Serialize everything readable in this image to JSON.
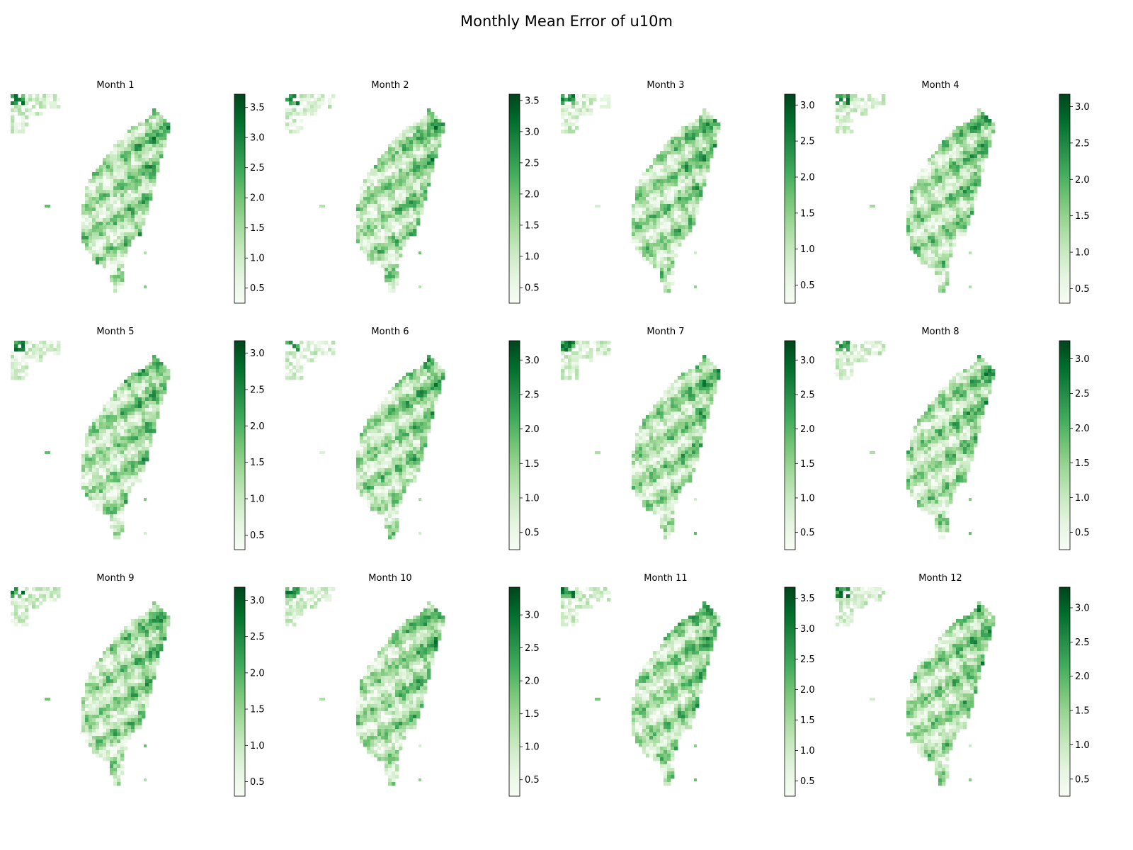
{
  "figure": {
    "title": "Monthly Mean Error of u10m"
  },
  "chart_data": {
    "type": "heatmap",
    "title": "Monthly Mean Error of u10m",
    "colormap": "Greens",
    "colormap_stops": [
      "#f7fcf5",
      "#e5f5e0",
      "#c7e9c0",
      "#a1d99b",
      "#74c476",
      "#41ab5d",
      "#238b45",
      "#006d2c",
      "#00441b"
    ],
    "panels": [
      {
        "title": "Month 1",
        "vmin": 0.25,
        "vmax": 3.72,
        "ticks": [
          "0.5",
          "1.0",
          "1.5",
          "2.0",
          "2.5",
          "3.0",
          "3.5"
        ]
      },
      {
        "title": "Month 2",
        "vmin": 0.25,
        "vmax": 3.6,
        "ticks": [
          "0.5",
          "1.0",
          "1.5",
          "2.0",
          "2.5",
          "3.0",
          "3.5"
        ]
      },
      {
        "title": "Month 3",
        "vmin": 0.25,
        "vmax": 3.15,
        "ticks": [
          "0.5",
          "1.0",
          "1.5",
          "2.0",
          "2.5",
          "3.0"
        ]
      },
      {
        "title": "Month 4",
        "vmin": 0.3,
        "vmax": 3.17,
        "ticks": [
          "0.5",
          "1.0",
          "1.5",
          "2.0",
          "2.5",
          "3.0"
        ]
      },
      {
        "title": "Month 5",
        "vmin": 0.3,
        "vmax": 3.17,
        "ticks": [
          "0.5",
          "1.0",
          "1.5",
          "2.0",
          "2.5",
          "3.0"
        ]
      },
      {
        "title": "Month 6",
        "vmin": 0.25,
        "vmax": 3.28,
        "ticks": [
          "0.5",
          "1.0",
          "1.5",
          "2.0",
          "2.5",
          "3.0"
        ]
      },
      {
        "title": "Month 7",
        "vmin": 0.25,
        "vmax": 3.28,
        "ticks": [
          "0.5",
          "1.0",
          "1.5",
          "2.0",
          "2.5",
          "3.0"
        ]
      },
      {
        "title": "Month 8",
        "vmin": 0.25,
        "vmax": 3.26,
        "ticks": [
          "0.5",
          "1.0",
          "1.5",
          "2.0",
          "2.5",
          "3.0"
        ]
      },
      {
        "title": "Month 9",
        "vmin": 0.3,
        "vmax": 3.18,
        "ticks": [
          "0.5",
          "1.0",
          "1.5",
          "2.0",
          "2.5",
          "3.0"
        ]
      },
      {
        "title": "Month 10",
        "vmin": 0.25,
        "vmax": 3.42,
        "ticks": [
          "0.5",
          "1.0",
          "1.5",
          "2.0",
          "2.5",
          "3.0"
        ]
      },
      {
        "title": "Month 11",
        "vmin": 0.25,
        "vmax": 3.68,
        "ticks": [
          "0.5",
          "1.0",
          "1.5",
          "2.0",
          "2.5",
          "3.0",
          "3.5"
        ]
      },
      {
        "title": "Month 12",
        "vmin": 0.25,
        "vmax": 3.3,
        "ticks": [
          "0.5",
          "1.0",
          "1.5",
          "2.0",
          "2.5",
          "3.0"
        ]
      }
    ]
  }
}
